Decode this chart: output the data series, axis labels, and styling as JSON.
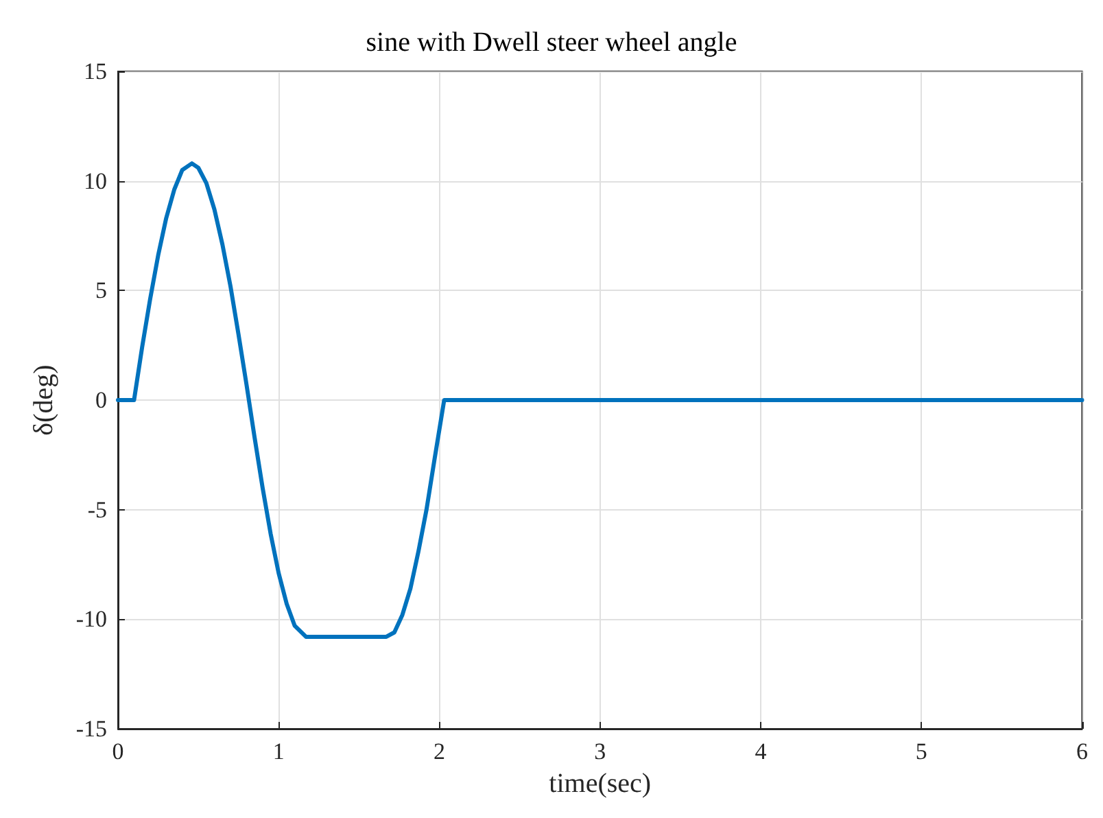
{
  "chart_data": {
    "type": "line",
    "title": "sine with Dwell steer wheel angle",
    "xlabel": "time(sec)",
    "ylabel": "δ(deg)",
    "x": [
      0,
      0.1,
      0.15,
      0.2,
      0.25,
      0.3,
      0.35,
      0.4,
      0.46,
      0.5,
      0.55,
      0.6,
      0.65,
      0.7,
      0.75,
      0.8,
      0.85,
      0.9,
      0.95,
      1.0,
      1.05,
      1.1,
      1.17,
      1.67,
      1.72,
      1.77,
      1.82,
      1.87,
      1.92,
      1.97,
      2.03,
      6
    ],
    "series": [
      {
        "color": "#0072bd",
        "values": [
          0,
          0,
          2.4,
          4.6,
          6.6,
          8.3,
          9.6,
          10.5,
          10.8,
          10.6,
          9.9,
          8.7,
          7.1,
          5.2,
          3.0,
          0.7,
          -1.7,
          -4.0,
          -6.1,
          -7.9,
          -9.3,
          -10.3,
          -10.8,
          -10.8,
          -10.6,
          -9.8,
          -8.6,
          -6.9,
          -5.0,
          -2.7,
          0,
          0
        ]
      }
    ],
    "xlim": [
      0,
      6
    ],
    "xticks": [
      0,
      1,
      2,
      3,
      4,
      5,
      6
    ],
    "ylim": [
      -15,
      15
    ],
    "yticks": [
      -15,
      -10,
      -5,
      0,
      5,
      10,
      15
    ],
    "grid": true,
    "marker": "none",
    "line_style": "solid"
  }
}
